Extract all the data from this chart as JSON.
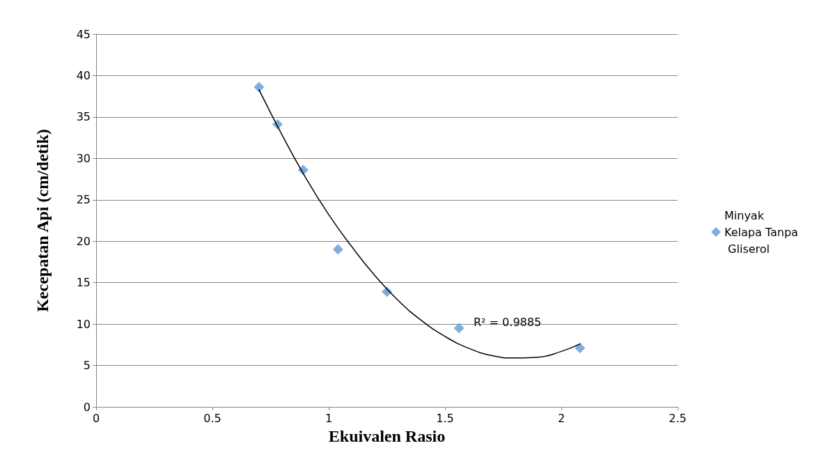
{
  "chart_data": {
    "type": "scatter",
    "xlabel": "Ekuivalen Rasio",
    "ylabel": "Kecepatan Api (cm/detik)",
    "xlim": [
      0,
      2.5
    ],
    "xticks": [
      0,
      0.5,
      1,
      1.5,
      2,
      2.5
    ],
    "ylim": [
      0,
      45
    ],
    "yticks": [
      0,
      5,
      10,
      15,
      20,
      25,
      30,
      35,
      40,
      45
    ],
    "grid": "y",
    "legend": "right",
    "marker": "diamond",
    "series": [
      {
        "name": "Minyak Kelapa Tanpa Gliserol",
        "color": "#5b9bd5",
        "x": [
          0.7,
          0.78,
          0.89,
          1.04,
          1.25,
          1.56,
          2.08
        ],
        "values": [
          38.6,
          34.1,
          28.6,
          19,
          13.9,
          9.5,
          7.1
        ]
      },
      {
        "type": "line",
        "marker": "none",
        "color": "#000000",
        "x": [
          0.7,
          0.8,
          0.9,
          1.0,
          1.1,
          1.2,
          1.3,
          1.4,
          1.5,
          1.6,
          1.7,
          1.8,
          1.9,
          2.0,
          2.08
        ],
        "values": [
          38.3,
          32.8,
          27.7,
          23.2,
          19.3,
          15.8,
          12.8,
          10.4,
          8.5,
          7.1,
          6.2,
          5.9,
          6,
          6.7,
          7.6
        ]
      }
    ],
    "annotations": [
      "R² = 0.9885"
    ]
  }
}
